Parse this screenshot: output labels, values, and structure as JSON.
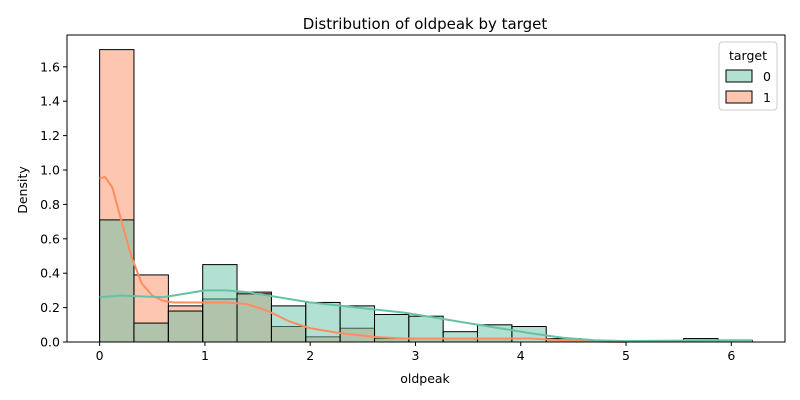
{
  "chart_data": {
    "type": "bar",
    "title": "Distribution of oldpeak by target",
    "xlabel": "oldpeak",
    "ylabel": "Density",
    "xlim": [
      -0.31,
      6.51
    ],
    "ylim": [
      0,
      1.785
    ],
    "x_ticks": [
      0,
      1,
      2,
      3,
      4,
      5,
      6
    ],
    "y_ticks": [
      0.0,
      0.2,
      0.4,
      0.6,
      0.8,
      1.0,
      1.2,
      1.4,
      1.6
    ],
    "bin_edges": [
      0,
      0.326,
      0.653,
      0.979,
      1.305,
      1.632,
      1.958,
      2.284,
      2.611,
      2.937,
      3.263,
      3.589,
      3.916,
      4.242,
      4.568,
      4.895,
      5.221,
      5.547,
      5.874,
      6.2
    ],
    "legend": {
      "title": "target",
      "position": "top-right"
    },
    "series": [
      {
        "name": "1",
        "color": "#fc8d62",
        "values": [
          1.7,
          0.39,
          0.21,
          0.25,
          0.29,
          0.09,
          0.03,
          0.08,
          0.02,
          0.02,
          0.02,
          0.02,
          0.0,
          0.02,
          0.0,
          0.0,
          0.0,
          0.0,
          0.0
        ],
        "kde": [
          [
            0,
            0.95
          ],
          [
            0.05,
            0.96
          ],
          [
            0.12,
            0.9
          ],
          [
            0.2,
            0.72
          ],
          [
            0.3,
            0.5
          ],
          [
            0.4,
            0.34
          ],
          [
            0.5,
            0.27
          ],
          [
            0.6,
            0.24
          ],
          [
            0.7,
            0.23
          ],
          [
            0.85,
            0.23
          ],
          [
            1.0,
            0.23
          ],
          [
            1.2,
            0.23
          ],
          [
            1.4,
            0.22
          ],
          [
            1.6,
            0.18
          ],
          [
            1.8,
            0.12
          ],
          [
            2.0,
            0.08
          ],
          [
            2.3,
            0.05
          ],
          [
            2.6,
            0.03
          ],
          [
            2.9,
            0.02
          ],
          [
            3.3,
            0.02
          ],
          [
            3.7,
            0.02
          ],
          [
            4.1,
            0.02
          ],
          [
            4.4,
            0.01
          ],
          [
            4.7,
            0.003
          ],
          [
            5.0,
            0.0
          ]
        ]
      },
      {
        "name": "0",
        "color": "#66c2a5",
        "values": [
          0.71,
          0.11,
          0.18,
          0.45,
          0.28,
          0.21,
          0.23,
          0.21,
          0.16,
          0.15,
          0.06,
          0.1,
          0.09,
          0.02,
          0.0,
          0.0,
          0.0,
          0.02,
          0.01
        ],
        "kde": [
          [
            0,
            0.26
          ],
          [
            0.2,
            0.27
          ],
          [
            0.4,
            0.265
          ],
          [
            0.6,
            0.26
          ],
          [
            0.8,
            0.28
          ],
          [
            1.0,
            0.3
          ],
          [
            1.2,
            0.3
          ],
          [
            1.4,
            0.29
          ],
          [
            1.6,
            0.27
          ],
          [
            1.8,
            0.25
          ],
          [
            2.0,
            0.23
          ],
          [
            2.3,
            0.21
          ],
          [
            2.6,
            0.19
          ],
          [
            2.9,
            0.17
          ],
          [
            3.2,
            0.14
          ],
          [
            3.5,
            0.11
          ],
          [
            3.8,
            0.08
          ],
          [
            4.1,
            0.05
          ],
          [
            4.4,
            0.025
          ],
          [
            4.7,
            0.01
          ],
          [
            5.0,
            0.005
          ],
          [
            5.5,
            0.008
          ],
          [
            6.0,
            0.01
          ],
          [
            6.2,
            0.01
          ]
        ]
      }
    ]
  }
}
